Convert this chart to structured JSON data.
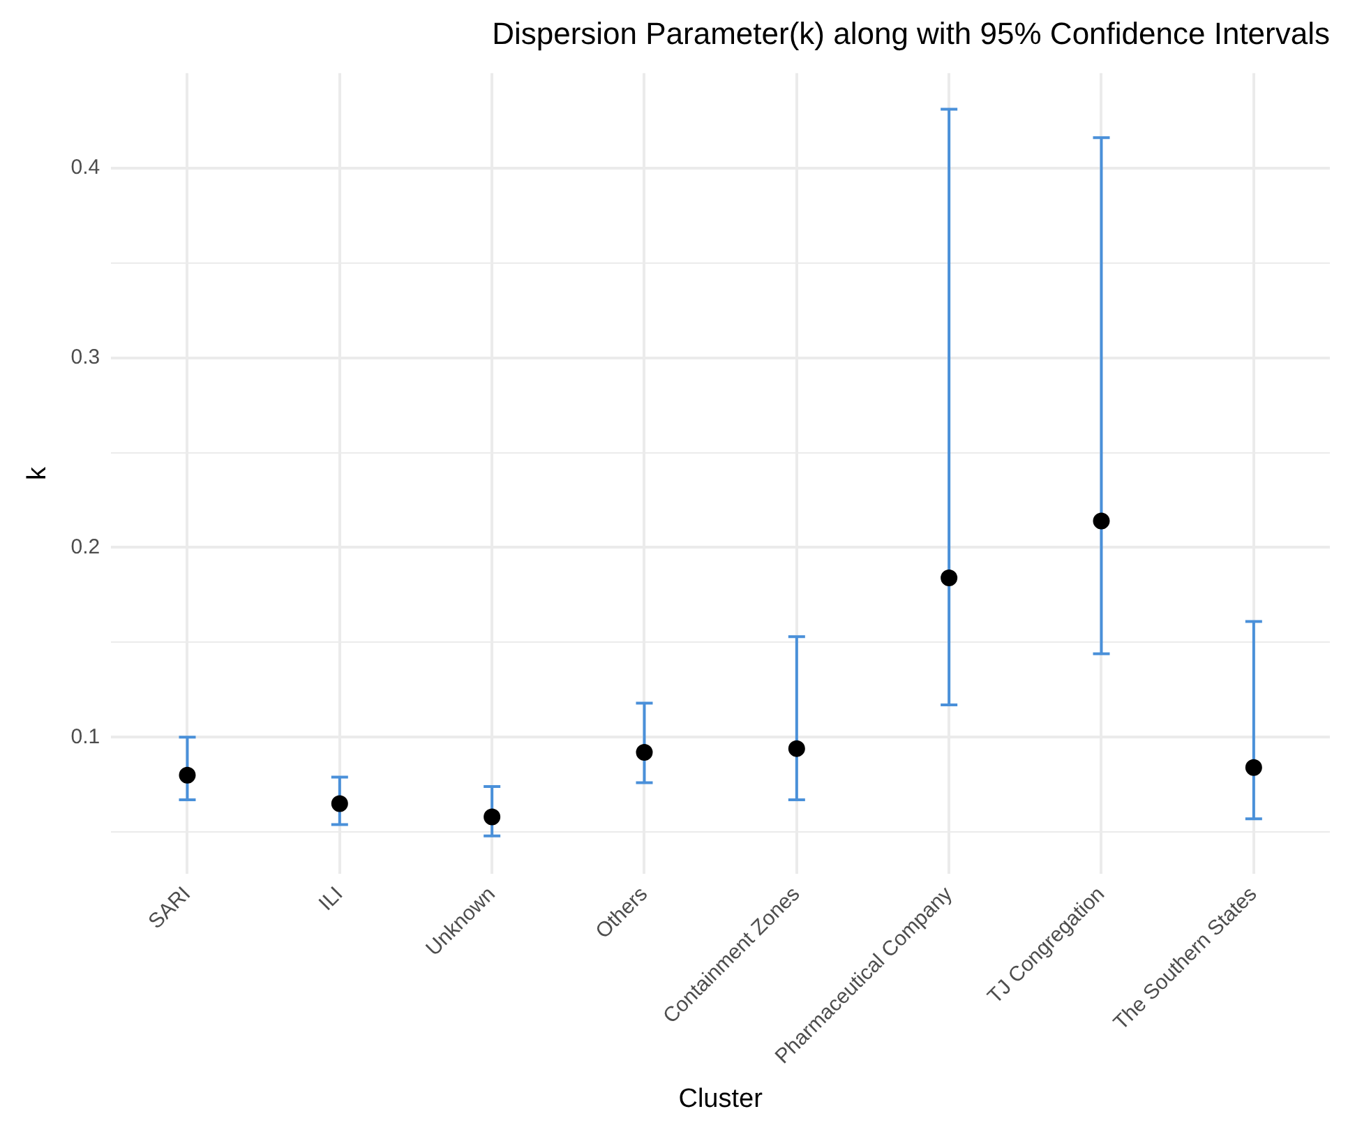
{
  "chart_data": {
    "type": "scatter",
    "title": "Dispersion Parameter(k) along with 95% Confidence Intervals",
    "xlabel": "Cluster",
    "ylabel": "k",
    "categories": [
      "SARI",
      "ILI",
      "Unknown",
      "Others",
      "Containment Zones",
      "Pharmaceutical Company",
      "TJ Congregation",
      "The Southern States"
    ],
    "series": [
      {
        "color": "#000000",
        "values": [
          0.08,
          0.065,
          0.058,
          0.092,
          0.094,
          0.184,
          0.214,
          0.084
        ],
        "errors": [
          [
            0.067,
            0.1
          ],
          [
            0.054,
            0.079
          ],
          [
            0.048,
            0.074
          ],
          [
            0.076,
            0.118
          ],
          [
            0.067,
            0.153
          ],
          [
            0.117,
            0.431
          ],
          [
            0.144,
            0.416
          ],
          [
            0.057,
            0.161
          ]
        ]
      }
    ],
    "ylim": [
      0.028,
      0.45
    ],
    "yticks": [
      {
        "value": 0.05,
        "label": null
      },
      0.1,
      {
        "value": 0.15,
        "label": null
      },
      0.2,
      {
        "value": 0.25,
        "label": null
      },
      0.3,
      {
        "value": 0.35,
        "label": null
      },
      0.4
    ],
    "grid": true,
    "legend": false,
    "marker": "circle"
  }
}
